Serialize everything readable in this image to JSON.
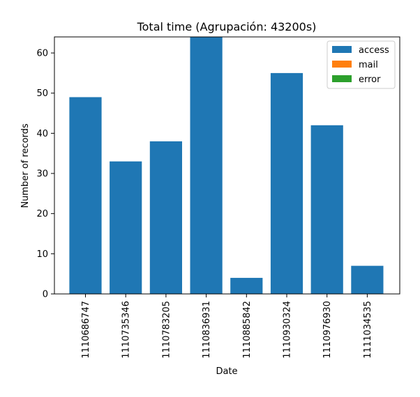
{
  "chart_data": {
    "type": "bar",
    "title": "Total time (Agrupación: 43200s)",
    "xlabel": "Date",
    "ylabel": "Number of records",
    "categories": [
      "1110686747",
      "1110735346",
      "1110783205",
      "1110836931",
      "1110885842",
      "1110930324",
      "1110976930",
      "1111034535"
    ],
    "series": [
      {
        "name": "access",
        "color": "#1f77b4",
        "values": [
          49,
          33,
          38,
          64,
          4,
          55,
          42,
          7
        ]
      },
      {
        "name": "mail",
        "color": "#ff7f0e",
        "values": [
          0,
          0,
          0,
          0,
          0,
          0,
          0,
          0
        ]
      },
      {
        "name": "error",
        "color": "#2ca02c",
        "values": [
          0,
          0,
          0,
          0,
          0,
          0,
          0,
          0
        ]
      }
    ],
    "ylim": [
      0,
      64
    ],
    "yticks": [
      0,
      10,
      20,
      30,
      40,
      50,
      60
    ],
    "grid": false,
    "legend_position": "top-right"
  }
}
